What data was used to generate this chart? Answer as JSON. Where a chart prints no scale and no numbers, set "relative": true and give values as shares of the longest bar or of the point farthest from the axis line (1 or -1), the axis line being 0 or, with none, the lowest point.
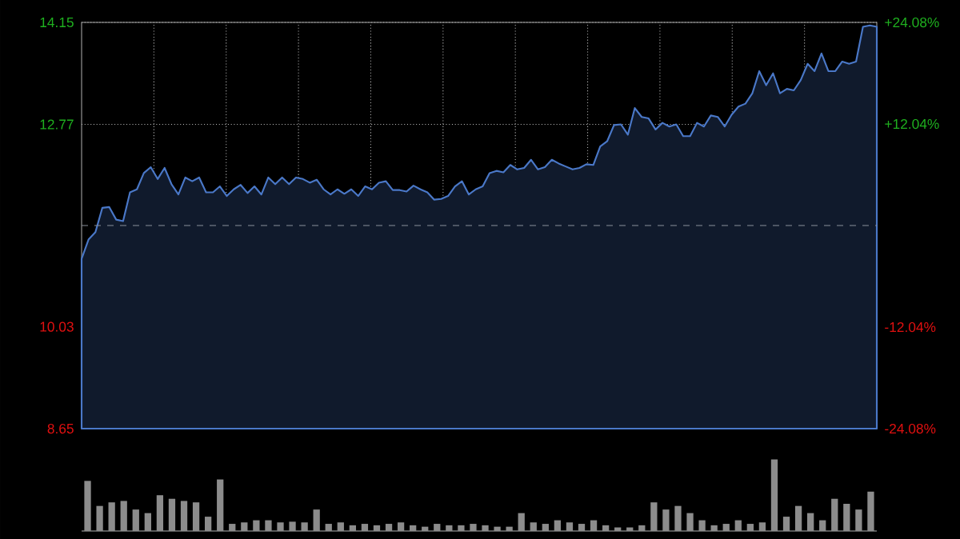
{
  "chart_data": [
    {
      "type": "area",
      "categories": [
        null,
        null,
        null,
        null,
        null,
        null,
        null,
        null,
        null,
        null,
        null,
        null,
        null,
        null,
        null,
        null,
        null,
        null,
        null,
        null,
        null,
        null,
        null,
        null,
        null,
        null,
        null,
        null,
        null,
        null,
        null,
        null,
        null,
        null,
        null,
        null,
        null,
        null,
        null,
        null,
        null,
        null,
        null,
        null,
        null,
        null,
        null,
        null,
        null,
        null,
        null,
        null,
        null,
        null,
        null,
        null,
        null,
        null,
        null,
        null,
        null,
        null,
        null,
        null,
        null,
        null,
        null,
        null,
        null,
        null,
        null,
        null,
        null,
        null,
        null,
        null,
        null,
        null,
        null,
        null,
        null,
        null,
        null,
        null,
        null,
        null,
        null,
        null,
        null,
        null,
        null,
        null,
        null,
        null,
        null,
        null,
        null,
        null,
        null,
        null,
        null,
        null,
        null,
        null,
        null,
        null,
        null,
        null,
        null,
        null,
        null,
        null,
        null,
        null,
        null,
        null
      ],
      "ylim": [
        8.65,
        14.15
      ],
      "yticks": [
        8.65,
        10.03,
        12.77,
        14.15
      ],
      "y2lim": [
        -24.08,
        24.08
      ],
      "y2ticks": [
        {
          "value": -24.08,
          "label": "-24.08%"
        },
        {
          "value": -12.04,
          "label": "-12.04%"
        },
        {
          "value": 12.04,
          "label": "+12.04%"
        },
        {
          "value": 24.08,
          "label": "+24.08%"
        }
      ],
      "grid": true,
      "ref_lines": [
        {
          "axis": "y",
          "value": 11.4,
          "line_style": "dashed",
          "color": "#8a8f99"
        }
      ],
      "series": [
        {
          "color": "#4a78c8",
          "values": [
            10.95,
            11.21,
            11.31,
            11.64,
            11.65,
            11.48,
            11.46,
            11.85,
            11.89,
            12.11,
            12.19,
            12.03,
            12.18,
            11.96,
            11.82,
            12.05,
            12.0,
            12.05,
            11.85,
            11.85,
            11.93,
            11.8,
            11.89,
            11.95,
            11.84,
            11.93,
            11.82,
            12.05,
            11.96,
            12.05,
            11.96,
            12.05,
            12.03,
            11.98,
            12.02,
            11.89,
            11.82,
            11.89,
            11.83,
            11.89,
            11.8,
            11.93,
            11.89,
            11.98,
            12.0,
            11.88,
            11.88,
            11.86,
            11.94,
            11.89,
            11.85,
            11.75,
            11.76,
            11.8,
            11.93,
            12.0,
            11.82,
            11.89,
            11.93,
            12.11,
            12.14,
            12.12,
            12.22,
            12.16,
            12.18,
            12.29,
            12.16,
            12.19,
            12.29,
            12.24,
            12.2,
            12.16,
            12.18,
            12.23,
            12.22,
            12.47,
            12.54,
            12.76,
            12.77,
            12.63,
            12.99,
            12.87,
            12.85,
            12.7,
            12.79,
            12.74,
            12.77,
            12.61,
            12.61,
            12.79,
            12.74,
            12.89,
            12.87,
            12.74,
            12.9,
            13.01,
            13.05,
            13.19,
            13.49,
            13.3,
            13.46,
            13.19,
            13.25,
            13.23,
            13.37,
            13.59,
            13.49,
            13.73,
            13.49,
            13.49,
            13.62,
            13.59,
            13.62,
            14.09,
            14.11,
            14.09
          ]
        }
      ]
    },
    {
      "type": "bar",
      "relative": true,
      "color": "#8c8c8c",
      "categories": [
        null,
        null,
        null,
        null,
        null,
        null,
        null,
        null,
        null,
        null,
        null,
        null,
        null,
        null,
        null,
        null,
        null,
        null,
        null,
        null,
        null,
        null,
        null,
        null,
        null,
        null,
        null,
        null,
        null,
        null,
        null,
        null,
        null,
        null,
        null,
        null,
        null,
        null,
        null,
        null,
        null,
        null,
        null,
        null,
        null,
        null,
        null,
        null,
        null,
        null,
        null,
        null,
        null,
        null,
        null,
        null,
        null,
        null,
        null,
        null,
        null,
        null,
        null,
        null,
        null,
        null
      ],
      "values": [
        0.7,
        0.35,
        0.4,
        0.42,
        0.3,
        0.25,
        0.5,
        0.45,
        0.42,
        0.4,
        0.2,
        0.72,
        0.1,
        0.12,
        0.15,
        0.15,
        0.12,
        0.13,
        0.12,
        0.3,
        0.1,
        0.12,
        0.08,
        0.1,
        0.08,
        0.1,
        0.12,
        0.08,
        0.06,
        0.1,
        0.08,
        0.08,
        0.1,
        0.08,
        0.06,
        0.06,
        0.25,
        0.12,
        0.1,
        0.15,
        0.12,
        0.1,
        0.15,
        0.08,
        0.05,
        0.05,
        0.08,
        0.4,
        0.3,
        0.35,
        0.25,
        0.15,
        0.08,
        0.1,
        0.15,
        0.1,
        0.12,
        1.0,
        0.2,
        0.35,
        0.25,
        0.15,
        0.45,
        0.38,
        0.3,
        0.55
      ]
    }
  ]
}
